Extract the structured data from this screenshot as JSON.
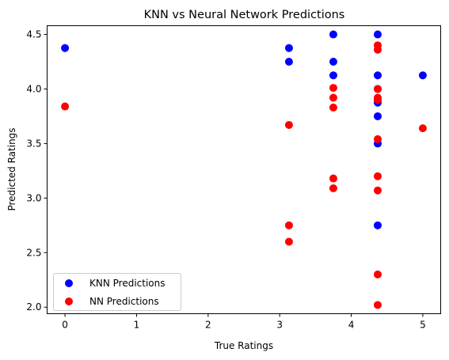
{
  "chart_data": {
    "type": "scatter",
    "title": "KNN vs Neural Network Predictions",
    "xlabel": "True Ratings",
    "ylabel": "Predicted Ratings",
    "xlim": [
      -0.25,
      5.25
    ],
    "ylim": [
      1.94,
      4.58
    ],
    "xticks": [
      0,
      1,
      2,
      3,
      4,
      5
    ],
    "yticks": [
      2.0,
      2.5,
      3.0,
      3.5,
      4.0,
      4.5
    ],
    "grid": false,
    "legend_position": "lower-left",
    "series": [
      {
        "name": "KNN Predictions",
        "color": "#0000ff",
        "points": [
          [
            0.0,
            4.375
          ],
          [
            3.13,
            4.375
          ],
          [
            3.13,
            4.25
          ],
          [
            3.75,
            4.5
          ],
          [
            3.75,
            4.25
          ],
          [
            3.75,
            4.125
          ],
          [
            4.37,
            4.5
          ],
          [
            4.37,
            4.125
          ],
          [
            4.37,
            4.0
          ],
          [
            4.37,
            3.875
          ],
          [
            4.37,
            3.75
          ],
          [
            4.37,
            3.5
          ],
          [
            4.37,
            2.75
          ],
          [
            5.0,
            4.125
          ]
        ]
      },
      {
        "name": "NN Predictions",
        "color": "#ff0000",
        "points": [
          [
            0.0,
            3.84
          ],
          [
            3.13,
            3.67
          ],
          [
            3.13,
            2.75
          ],
          [
            3.13,
            2.6
          ],
          [
            3.75,
            4.01
          ],
          [
            3.75,
            3.92
          ],
          [
            3.75,
            3.83
          ],
          [
            3.75,
            3.18
          ],
          [
            3.75,
            3.09
          ],
          [
            4.37,
            4.4
          ],
          [
            4.37,
            4.36
          ],
          [
            4.37,
            4.0
          ],
          [
            4.37,
            3.92
          ],
          [
            4.37,
            3.9
          ],
          [
            4.37,
            3.54
          ],
          [
            4.37,
            3.2
          ],
          [
            4.37,
            3.07
          ],
          [
            4.37,
            2.3
          ],
          [
            4.37,
            2.02
          ],
          [
            5.0,
            3.64
          ]
        ]
      }
    ]
  }
}
